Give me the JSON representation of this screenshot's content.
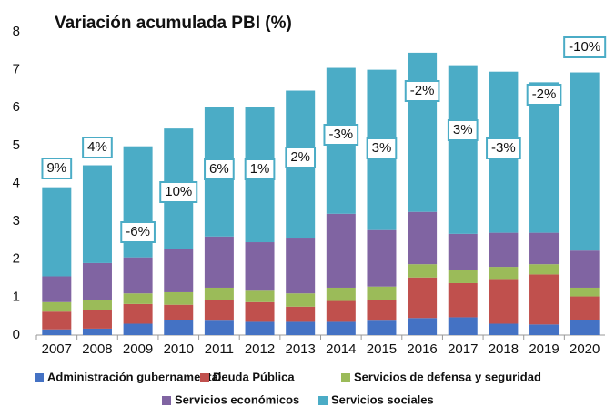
{
  "chart_data": {
    "type": "stacked_bar",
    "title": "Variación acumulada PBI (%)",
    "categories": [
      "2007",
      "2008",
      "2009",
      "2010",
      "2011",
      "2012",
      "2013",
      "2014",
      "2015",
      "2016",
      "2017",
      "2018",
      "2019",
      "2020"
    ],
    "series": [
      {
        "name": "Administración gubernamental",
        "color": "#4472c4",
        "values": [
          0.15,
          0.17,
          0.3,
          0.4,
          0.38,
          0.35,
          0.35,
          0.35,
          0.38,
          0.45,
          0.47,
          0.3,
          0.28,
          0.4
        ]
      },
      {
        "name": "Deuda Pública",
        "color": "#c0504d",
        "values": [
          0.47,
          0.5,
          0.52,
          0.4,
          0.54,
          0.52,
          0.4,
          0.55,
          0.54,
          1.07,
          0.9,
          1.18,
          1.32,
          0.62
        ]
      },
      {
        "name": "Servicios de defensa y seguridad",
        "color": "#9bbb59",
        "values": [
          0.25,
          0.26,
          0.28,
          0.33,
          0.33,
          0.3,
          0.35,
          0.35,
          0.36,
          0.35,
          0.35,
          0.32,
          0.27,
          0.23
        ]
      },
      {
        "name": "Servicios económicos",
        "color": "#8064a2",
        "values": [
          0.68,
          0.97,
          0.95,
          1.14,
          1.35,
          1.28,
          1.47,
          1.95,
          1.49,
          1.38,
          0.95,
          0.9,
          0.83,
          0.98
        ]
      },
      {
        "name": "Servicios sociales",
        "color": "#4bacc6",
        "values": [
          2.35,
          2.58,
          2.93,
          3.18,
          3.42,
          3.58,
          3.88,
          3.85,
          4.23,
          4.2,
          4.45,
          4.25,
          3.97,
          4.7
        ]
      }
    ],
    "annotations": [
      "9%",
      "4%",
      "-6%",
      "10%",
      "6%",
      "1%",
      "2%",
      "-3%",
      "3%",
      "-2%",
      "3%",
      "-3%",
      "-2%",
      "-10%"
    ],
    "ylim": [
      0,
      8
    ],
    "yticks": [
      0,
      1,
      2,
      3,
      4,
      5,
      6,
      7,
      8
    ],
    "grid": false
  }
}
